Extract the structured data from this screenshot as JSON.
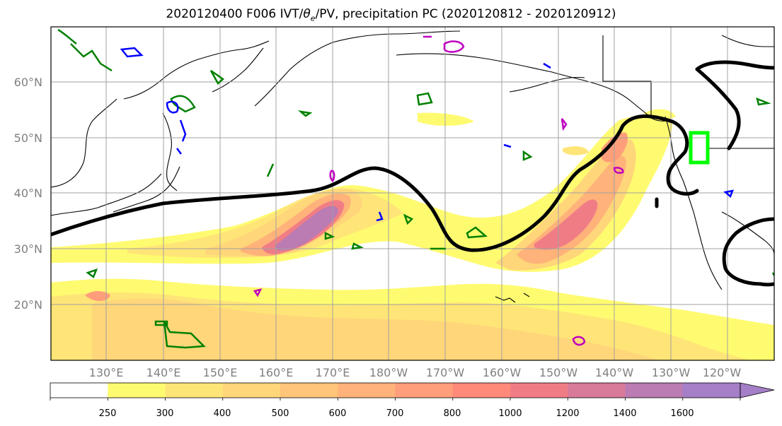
{
  "title": {
    "prefix": "2020120400 F006 IVT/",
    "theta": "θ",
    "theta_sub": "e",
    "suffix": "/PV, precipitation PC (2020120812 - 2020120912)"
  },
  "lat_labels": [
    "60°N",
    "50°N",
    "40°N",
    "30°N",
    "20°N"
  ],
  "lon_labels": [
    "130°E",
    "140°E",
    "150°E",
    "160°E",
    "170°E",
    "180°W",
    "170°W",
    "160°W",
    "150°W",
    "140°W",
    "130°W",
    "120°W"
  ],
  "colorbar": {
    "ticks": [
      "250",
      "300",
      "400",
      "500",
      "600",
      "700",
      "800",
      "1000",
      "1200",
      "1400",
      "1600"
    ],
    "colors": [
      "#ffffff",
      "#fffb70",
      "#ffe577",
      "#ffd67a",
      "#ffc57a",
      "#ffb27a",
      "#ff9e7a",
      "#ff8a7a",
      "#f07d86",
      "#d87a9a",
      "#bb7bb3",
      "#a57fc7"
    ]
  },
  "colors": {
    "contour_black": "#000000",
    "pv_green": "#008000",
    "pv_blue": "#0000ff",
    "pv_magenta": "#c000c0",
    "box_green": "#00ff00",
    "grid": "#a0a0a0"
  }
}
